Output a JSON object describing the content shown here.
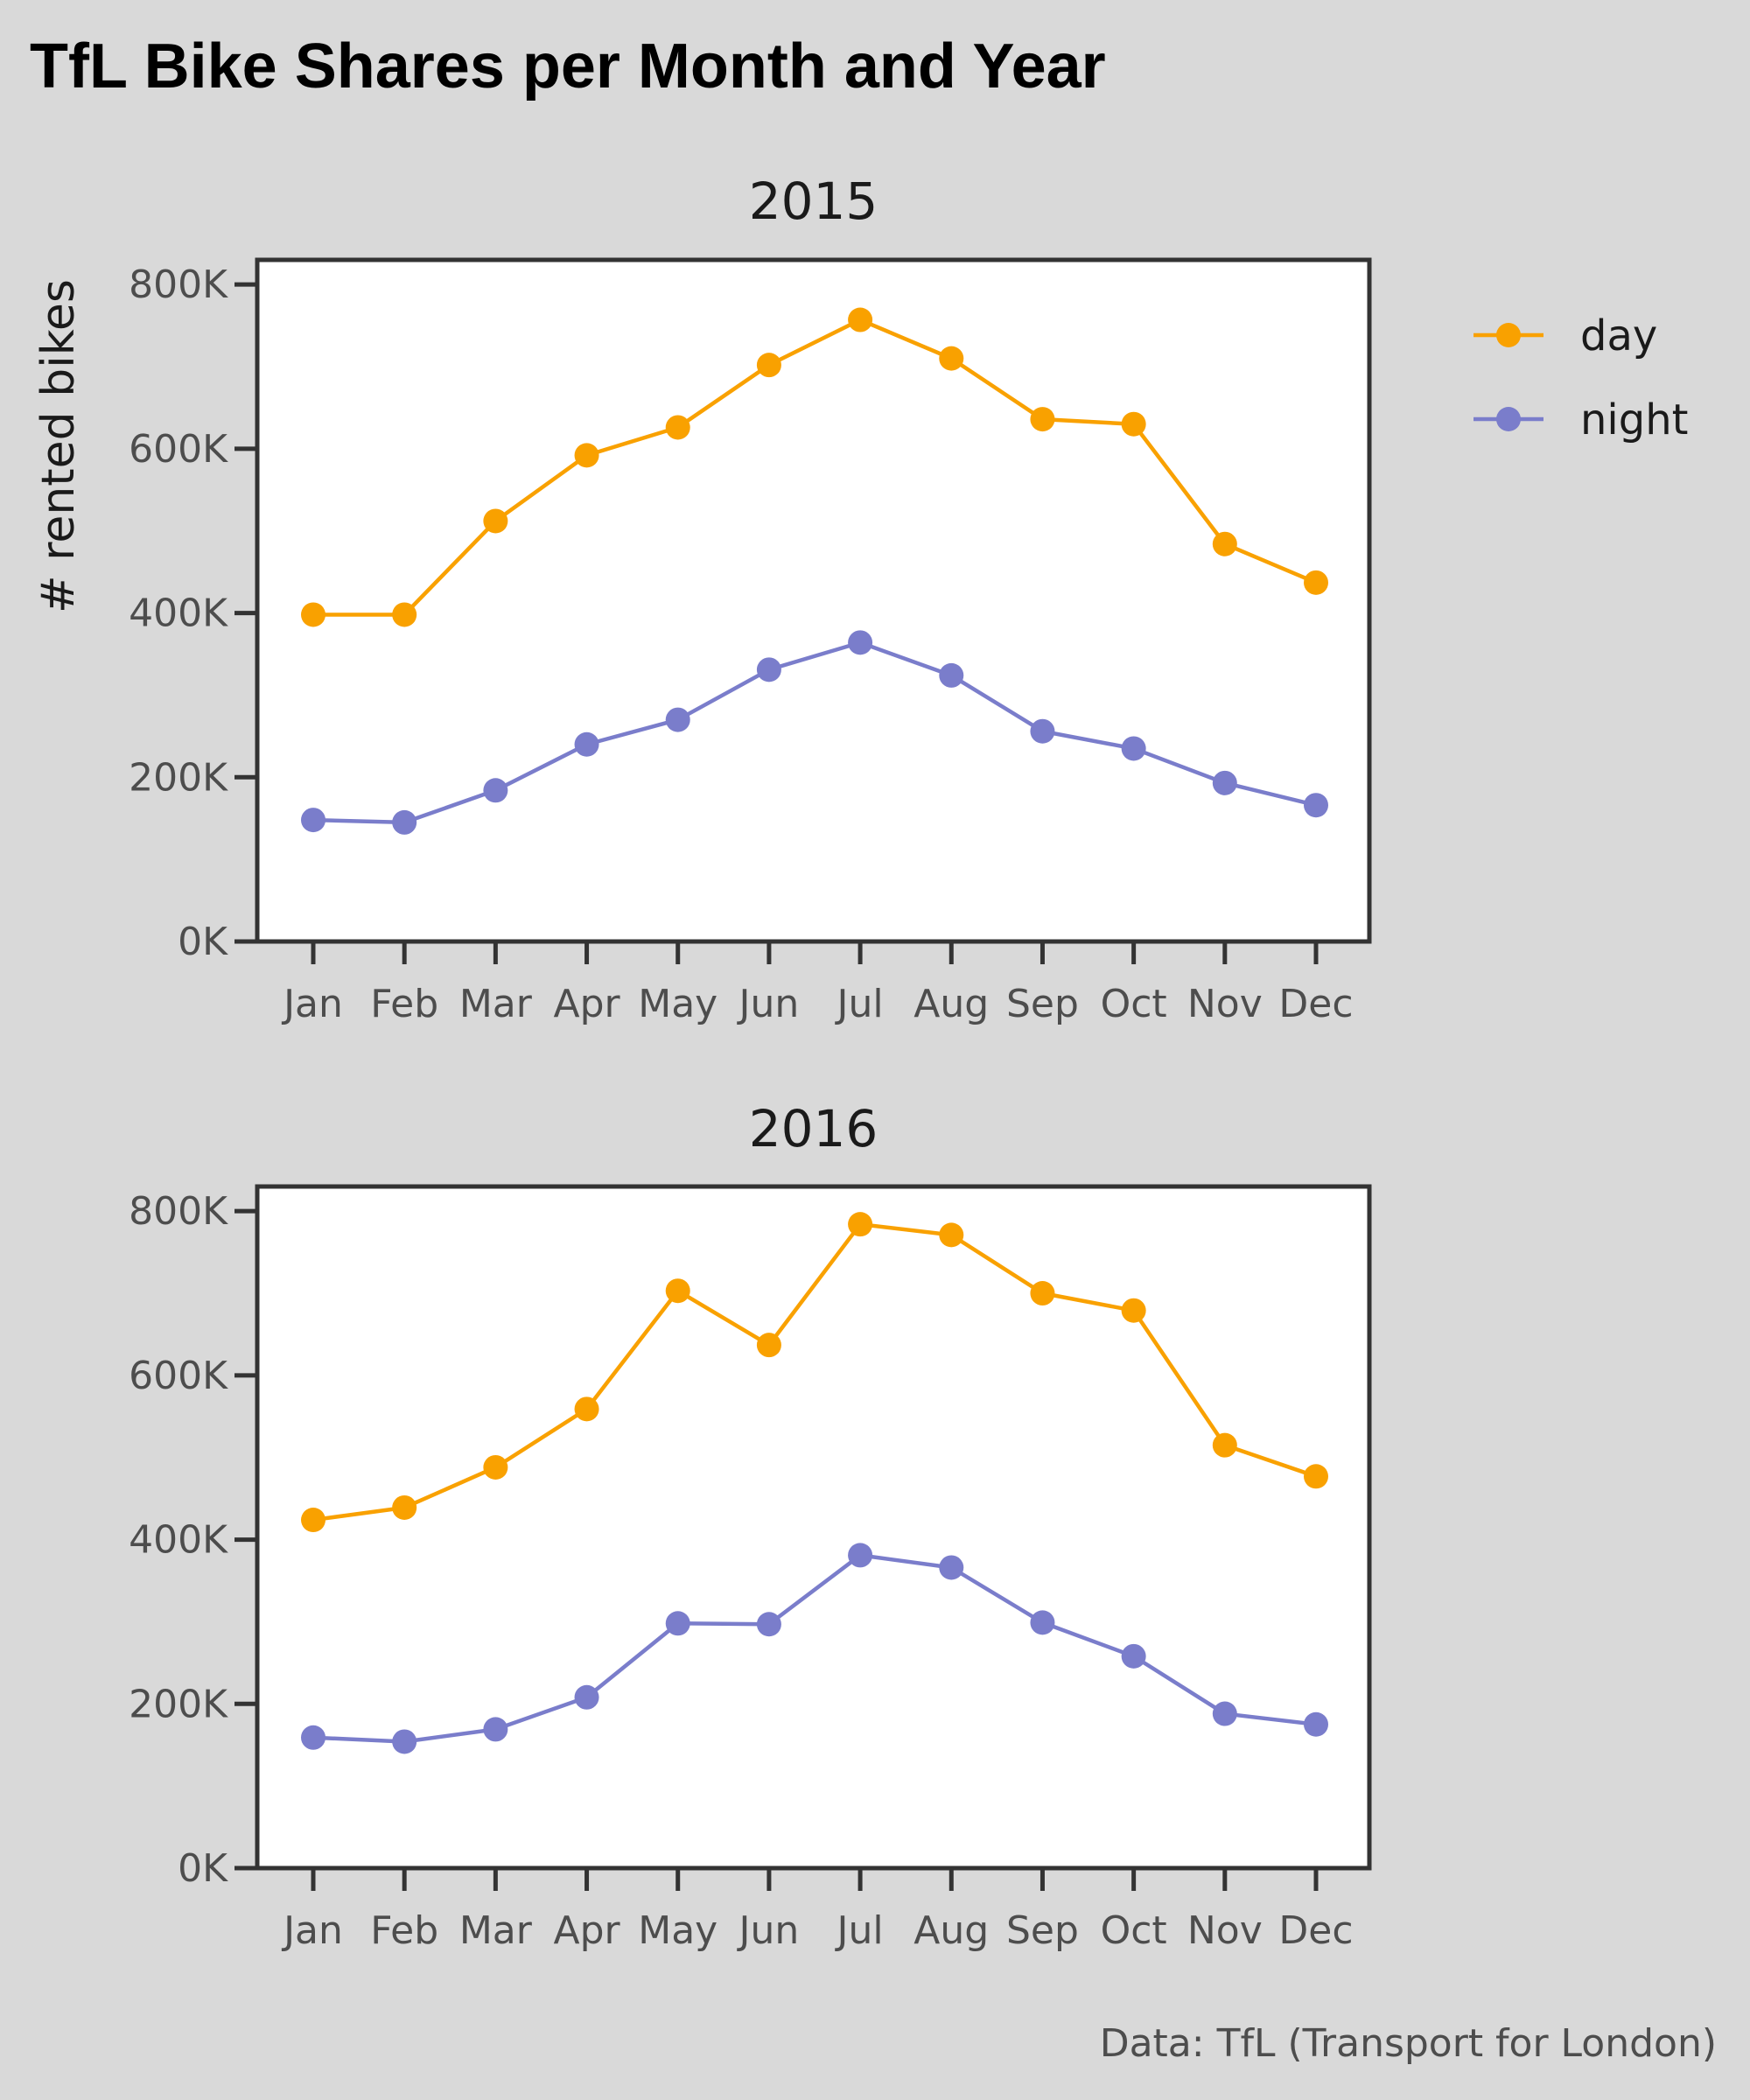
{
  "chart_data": {
    "type": "line",
    "title": "TfL Bike Shares per Month and Year",
    "caption": "Data: TfL (Transport for London)",
    "ylabel": "# rented bikes",
    "ylim": [
      0,
      830000
    ],
    "yticks": [
      0,
      200000,
      400000,
      600000,
      800000
    ],
    "ytick_labels": [
      "0K",
      "200K",
      "400K",
      "600K",
      "800K"
    ],
    "categories": [
      "Jan",
      "Feb",
      "Mar",
      "Apr",
      "May",
      "Jun",
      "Jul",
      "Aug",
      "Sep",
      "Oct",
      "Nov",
      "Dec"
    ],
    "legend": [
      {
        "name": "day",
        "color": "#f9a100"
      },
      {
        "name": "night",
        "color": "#7a7dcb"
      }
    ],
    "legend_position": "right",
    "grid": false,
    "panels": [
      {
        "title": "2015",
        "series": [
          {
            "name": "day",
            "color": "#f9a100",
            "values": [
              398000,
              398000,
              512000,
              592000,
              626000,
              702000,
              757000,
              710000,
              636000,
              630000,
              484000,
              437000
            ]
          },
          {
            "name": "night",
            "color": "#7a7dcb",
            "values": [
              148000,
              145000,
              184000,
              240000,
              270000,
              331000,
              364000,
              324000,
              256000,
              235000,
              193000,
              166000
            ]
          }
        ]
      },
      {
        "title": "2016",
        "series": [
          {
            "name": "day",
            "color": "#f9a100",
            "values": [
              424000,
              439000,
              488000,
              559000,
              703000,
              637000,
              784000,
              771000,
              700000,
              679000,
              515000,
              477000
            ]
          },
          {
            "name": "night",
            "color": "#7a7dcb",
            "values": [
              159000,
              154000,
              169000,
              208000,
              298000,
              297000,
              381000,
              366000,
              299000,
              258000,
              188000,
              175000
            ]
          }
        ]
      }
    ]
  }
}
